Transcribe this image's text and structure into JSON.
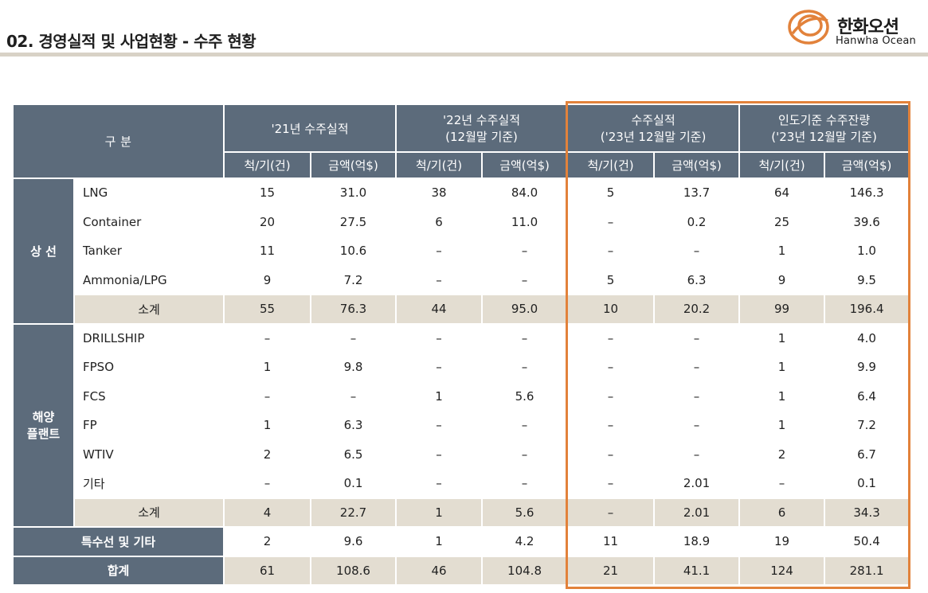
{
  "header": {
    "title": "02. 경영실적 및 사업현황 -  수주 현황",
    "logo_ko": "한화오션",
    "logo_en": "Hanwha Ocean",
    "accent_color": "#e2823b"
  },
  "table": {
    "corner": "구  분",
    "groups": [
      {
        "line1": "'21년 수주실적",
        "line2": ""
      },
      {
        "line1": "'22년 수주실적",
        "line2": "(12월말 기준)"
      },
      {
        "line1": "수주실적",
        "line2": "('23년 12월말 기준)"
      },
      {
        "line1": "인도기준 수주잔량",
        "line2": "('23년 12월말 기준)"
      }
    ],
    "subheaders": [
      "척/기(건)",
      "금액(억$)",
      "척/기(건)",
      "금액(억$)",
      "척/기(건)",
      "금액(억$)",
      "척/기(건)",
      "금액(억$)"
    ],
    "sections": [
      {
        "name": "상 선",
        "rows": [
          {
            "label": "LNG",
            "values": [
              "15",
              "31.0",
              "38",
              "84.0",
              "5",
              "13.7",
              "64",
              "146.3"
            ]
          },
          {
            "label": "Container",
            "values": [
              "20",
              "27.5",
              "6",
              "11.0",
              "–",
              "0.2",
              "25",
              "39.6"
            ]
          },
          {
            "label": "Tanker",
            "values": [
              "11",
              "10.6",
              "–",
              "–",
              "–",
              "–",
              "1",
              "1.0"
            ]
          },
          {
            "label": "Ammonia/LPG",
            "values": [
              "9",
              "7.2",
              "–",
              "–",
              "5",
              "6.3",
              "9",
              "9.5"
            ]
          }
        ],
        "subtotal": {
          "label": "소계",
          "values": [
            "55",
            "76.3",
            "44",
            "95.0",
            "10",
            "20.2",
            "99",
            "196.4"
          ]
        }
      },
      {
        "name_line1": "해양",
        "name_line2": "플랜트",
        "rows": [
          {
            "label": "DRILLSHIP",
            "values": [
              "–",
              "–",
              "–",
              "–",
              "–",
              "–",
              "1",
              "4.0"
            ]
          },
          {
            "label": "FPSO",
            "values": [
              "1",
              "9.8",
              "–",
              "–",
              "–",
              "–",
              "1",
              "9.9"
            ]
          },
          {
            "label": "FCS",
            "values": [
              "–",
              "–",
              "1",
              "5.6",
              "–",
              "–",
              "1",
              "6.4"
            ]
          },
          {
            "label": "FP",
            "values": [
              "1",
              "6.3",
              "–",
              "–",
              "–",
              "–",
              "1",
              "7.2"
            ]
          },
          {
            "label": "WTIV",
            "values": [
              "2",
              "6.5",
              "–",
              "–",
              "–",
              "–",
              "2",
              "6.7"
            ]
          },
          {
            "label": "기타",
            "values": [
              "–",
              "0.1",
              "–",
              "–",
              "–",
              "2.01",
              "–",
              "0.1"
            ]
          }
        ],
        "subtotal": {
          "label": "소계",
          "values": [
            "4",
            "22.7",
            "1",
            "5.6",
            "–",
            "2.01",
            "6",
            "34.3"
          ]
        }
      }
    ],
    "special": {
      "label": "특수선 및 기타",
      "values": [
        "2",
        "9.6",
        "1",
        "4.2",
        "11",
        "18.9",
        "19",
        "50.4"
      ]
    },
    "total": {
      "label": "합계",
      "values": [
        "61",
        "108.6",
        "46",
        "104.8",
        "21",
        "41.1",
        "124",
        "281.1"
      ]
    }
  }
}
